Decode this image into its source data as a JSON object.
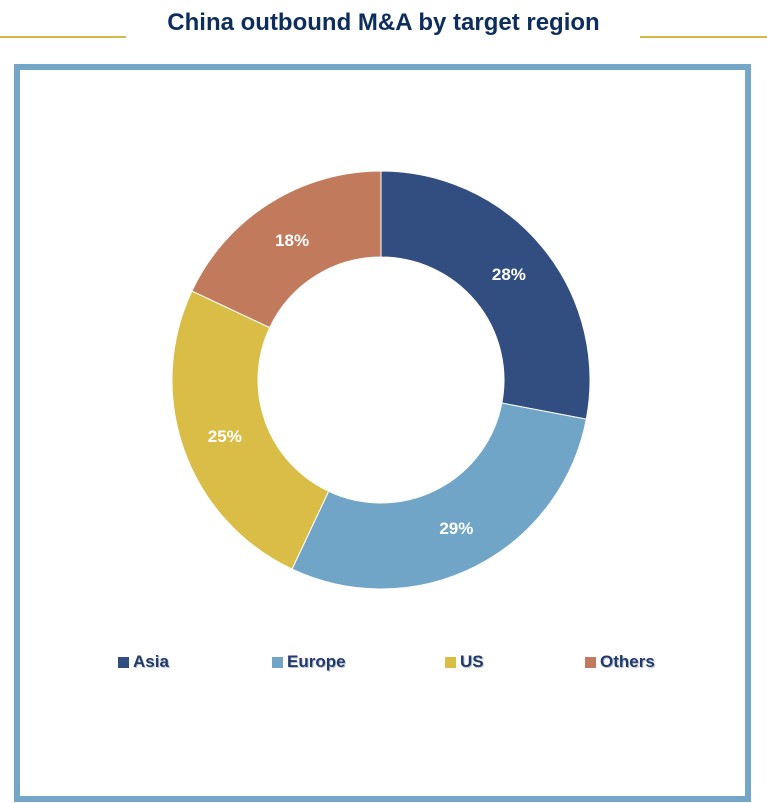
{
  "chart_data": {
    "type": "pie",
    "title": "China outbound M&A by target region",
    "donut": true,
    "categories": [
      "Asia",
      "Europe",
      "US",
      "Others"
    ],
    "values": [
      28,
      29,
      25,
      18
    ],
    "labels": [
      "28%",
      "29%",
      "25%",
      "18%"
    ],
    "colors": [
      "#324d80",
      "#70a5c8",
      "#d9bd46",
      "#c17a5c"
    ],
    "legend": "bottom"
  },
  "colors": {
    "frame": "#74a6c8",
    "title": "#0d2d5c",
    "rule": "#d8b84a"
  }
}
